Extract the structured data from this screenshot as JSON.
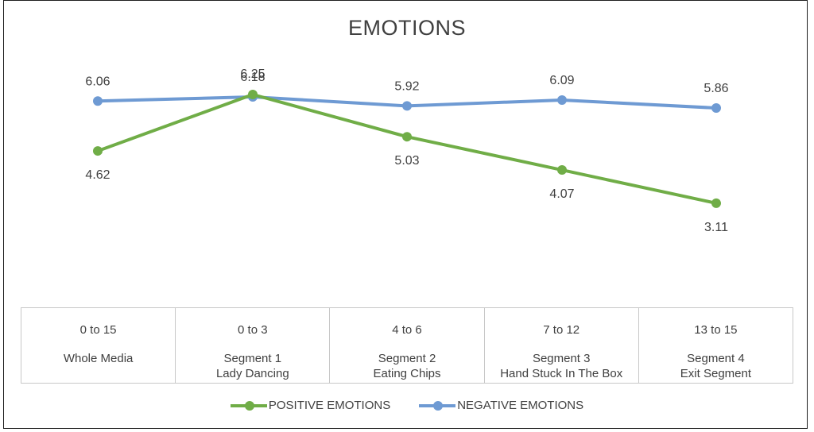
{
  "chart_data": {
    "type": "line",
    "title": "EMOTIONS",
    "categories": [
      {
        "range": "0 to 15",
        "name": "Whole Media"
      },
      {
        "range": "0 to 3",
        "name": "Segment 1\nLady Dancing"
      },
      {
        "range": "4 to 6",
        "name": "Segment 2\nEating Chips"
      },
      {
        "range": "7 to 12",
        "name": "Segment  3\nHand Stuck In The Box"
      },
      {
        "range": "13 to 15",
        "name": "Segment 4\nExit Segment"
      }
    ],
    "series": [
      {
        "name": "POSITIVE EMOTIONS",
        "color": "#70ad47",
        "values": [
          4.62,
          6.25,
          5.03,
          4.07,
          3.11
        ],
        "labels": [
          "4.62",
          "6.25",
          "5.03",
          "4.07",
          "3.11"
        ]
      },
      {
        "name": "NEGATIVE EMOTIONS",
        "color": "#6e9ad3",
        "values": [
          6.06,
          6.18,
          5.92,
          6.09,
          5.86
        ],
        "labels": [
          "6.06",
          "6.18",
          "5.92",
          "6.09",
          "5.86"
        ]
      }
    ],
    "ylim": [
      0,
      7
    ],
    "grid": false,
    "legend": "bottom"
  }
}
